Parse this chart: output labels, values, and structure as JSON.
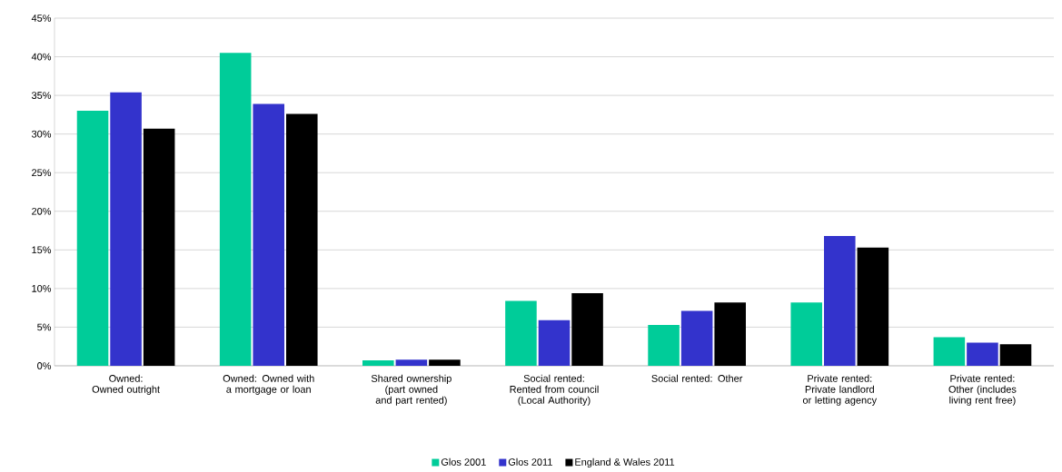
{
  "chart_data": {
    "type": "bar",
    "categories": [
      "Owned: Owned outright",
      "Owned: Owned with a mortgage or loan",
      "Shared ownership (part owned and part rented)",
      "Social rented: Rented from council (Local Authority)",
      "Social rented: Other",
      "Private rented: Private landlord or letting agency",
      "Private rented: Other (includes living rent free)"
    ],
    "series": [
      {
        "name": "Glos 2001",
        "color": "#00cc99",
        "values": [
          33.0,
          40.5,
          0.7,
          8.4,
          5.3,
          8.2,
          3.7
        ]
      },
      {
        "name": "Glos 2011",
        "color": "#3333cc",
        "values": [
          35.4,
          33.9,
          0.8,
          5.9,
          7.1,
          16.8,
          3.0
        ]
      },
      {
        "name": "England & Wales 2011",
        "color": "#000000",
        "values": [
          30.7,
          32.6,
          0.8,
          9.4,
          8.2,
          15.3,
          2.8
        ]
      }
    ],
    "ylim": [
      0,
      45
    ],
    "yticks": [
      {
        "value": 0,
        "label": "0%"
      },
      {
        "value": 5,
        "label": "5%"
      },
      {
        "value": 10,
        "label": "10%"
      },
      {
        "value": 15,
        "label": "15%"
      },
      {
        "value": 20,
        "label": "20%"
      },
      {
        "value": 25,
        "label": "25%"
      },
      {
        "value": 30,
        "label": "30%"
      },
      {
        "value": 35,
        "label": "35%"
      },
      {
        "value": 40,
        "label": "40%"
      },
      {
        "value": 45,
        "label": "45%"
      }
    ],
    "grid": "y",
    "legend": "bottom"
  }
}
